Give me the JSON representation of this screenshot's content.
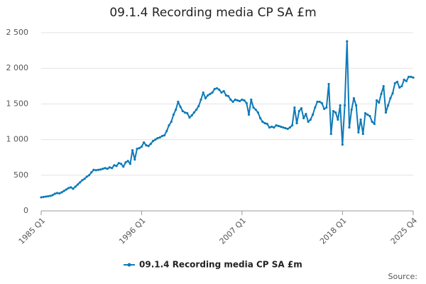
{
  "chart_data": {
    "type": "line",
    "title": "09.1.4 Recording media CP SA £m",
    "categories": [
      "1985 Q1",
      null,
      null,
      null,
      null,
      null,
      null,
      null,
      null,
      null,
      null,
      null,
      null,
      null,
      null,
      null,
      null,
      null,
      null,
      null,
      null,
      null,
      null,
      null,
      null,
      null,
      null,
      null,
      null,
      null,
      null,
      null,
      null,
      null,
      null,
      null,
      null,
      null,
      null,
      null,
      null,
      null,
      null,
      null,
      "1996 Q1",
      null,
      null,
      null,
      null,
      null,
      null,
      null,
      null,
      null,
      null,
      null,
      null,
      null,
      null,
      null,
      null,
      null,
      null,
      null,
      null,
      null,
      null,
      null,
      null,
      null,
      null,
      null,
      null,
      null,
      null,
      null,
      null,
      null,
      null,
      null,
      null,
      null,
      null,
      null,
      null,
      null,
      null,
      null,
      "2007 Q1",
      null,
      null,
      null,
      null,
      null,
      null,
      null,
      null,
      null,
      null,
      null,
      null,
      null,
      null,
      null,
      null,
      null,
      null,
      null,
      null,
      null,
      null,
      null,
      null,
      null,
      null,
      null,
      null,
      null,
      null,
      null,
      null,
      null,
      null,
      null,
      null,
      null,
      null,
      null,
      null,
      null,
      null,
      null,
      "2018 Q1",
      null,
      null,
      null,
      null,
      null,
      null,
      null,
      null,
      null,
      null,
      null,
      null,
      null,
      null,
      null,
      null,
      null,
      null,
      null,
      null,
      null,
      null,
      null,
      null,
      null,
      null,
      null,
      null,
      null,
      null,
      "2025 Q4"
    ],
    "series": [
      {
        "name": "09.1.4 Recording media CP SA £m",
        "color": "#0e7ab8",
        "values": [
          190,
          195,
          200,
          205,
          210,
          220,
          240,
          250,
          245,
          260,
          280,
          300,
          320,
          330,
          310,
          340,
          370,
          400,
          430,
          450,
          480,
          500,
          540,
          575,
          570,
          575,
          580,
          590,
          600,
          590,
          610,
          600,
          640,
          630,
          670,
          660,
          620,
          680,
          700,
          660,
          850,
          720,
          870,
          880,
          900,
          960,
          920,
          910,
          940,
          980,
          1000,
          1020,
          1030,
          1050,
          1060,
          1120,
          1200,
          1250,
          1350,
          1420,
          1530,
          1460,
          1400,
          1380,
          1370,
          1310,
          1340,
          1380,
          1420,
          1470,
          1560,
          1660,
          1580,
          1620,
          1640,
          1660,
          1710,
          1720,
          1700,
          1660,
          1680,
          1620,
          1610,
          1560,
          1530,
          1560,
          1550,
          1540,
          1560,
          1550,
          1510,
          1350,
          1560,
          1450,
          1420,
          1380,
          1300,
          1250,
          1230,
          1220,
          1170,
          1180,
          1170,
          1200,
          1190,
          1180,
          1170,
          1160,
          1150,
          1170,
          1200,
          1450,
          1230,
          1400,
          1440,
          1300,
          1360,
          1250,
          1280,
          1350,
          1450,
          1530,
          1530,
          1510,
          1430,
          1450,
          1780,
          1080,
          1400,
          1380,
          1280,
          1480,
          930,
          1480,
          2380,
          1170,
          1420,
          1580,
          1480,
          1100,
          1280,
          1080,
          1370,
          1350,
          1330,
          1250,
          1220,
          1550,
          1520,
          1640,
          1750,
          1380,
          1480,
          1580,
          1650,
          1790,
          1810,
          1730,
          1750,
          1840,
          1820,
          1880,
          1880,
          1870
        ]
      }
    ],
    "ylim": [
      0,
      2500
    ],
    "yticks": [
      0,
      500,
      {
        "value": 1000,
        "label": "1 000"
      },
      {
        "value": 1500,
        "label": "1 500"
      },
      {
        "value": 2000,
        "label": "2 000"
      },
      {
        "value": 2500,
        "label": "2 500"
      }
    ],
    "grid": true,
    "source": "Source:"
  }
}
